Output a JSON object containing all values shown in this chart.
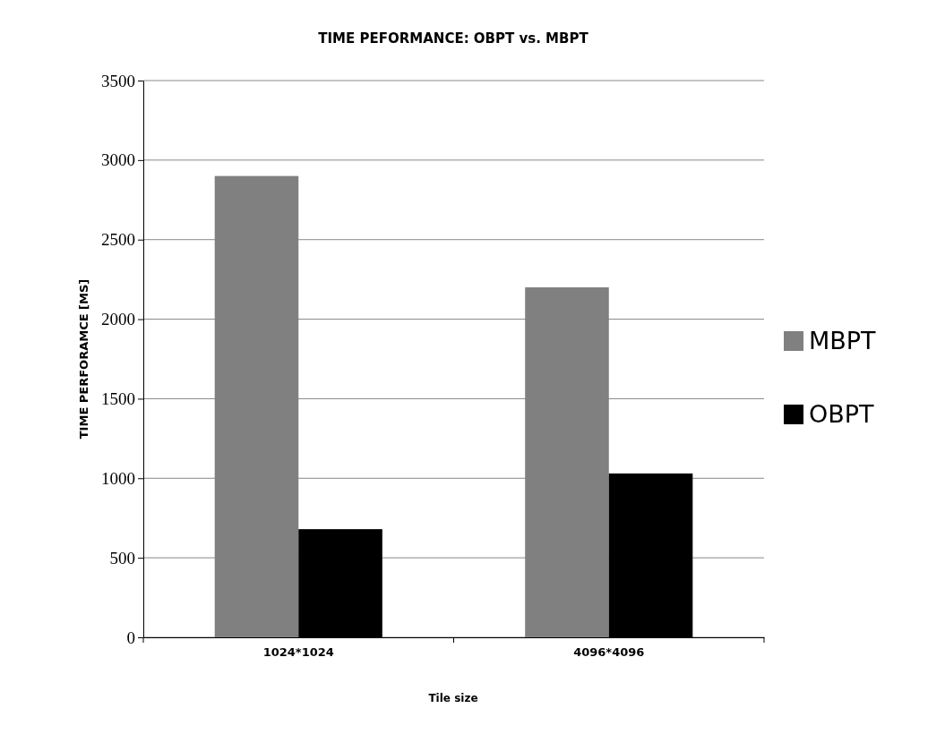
{
  "chart_data": {
    "type": "bar",
    "title": "TIME PEFORMANCE: OBPT vs. MBPT",
    "xlabel": "Tile size",
    "ylabel": "TIME PERFORAMCE [MS]",
    "categories": [
      "1024*1024",
      "4096*4096"
    ],
    "series": [
      {
        "name": "MBPT",
        "color": "#808080",
        "values": [
          2900,
          2200
        ]
      },
      {
        "name": "OBPT",
        "color": "#000000",
        "values": [
          680,
          1030
        ]
      }
    ],
    "ylim": [
      0,
      3500
    ],
    "yticks": [
      0,
      500,
      1000,
      1500,
      2000,
      2500,
      3000,
      3500
    ],
    "grid": "y",
    "legend": "right"
  }
}
